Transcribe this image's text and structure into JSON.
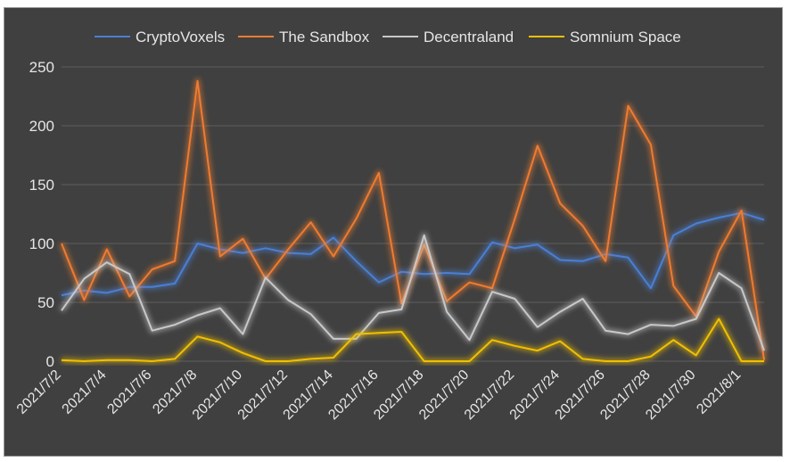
{
  "chart_data": {
    "type": "line",
    "title": "",
    "xlabel": "",
    "ylabel": "",
    "ylim": [
      0,
      250
    ],
    "yticks": [
      0,
      50,
      100,
      150,
      200,
      250
    ],
    "grid": true,
    "legend_position": "top",
    "background": "#404040",
    "categories": [
      "2021/7/2",
      "2021/7/3",
      "2021/7/4",
      "2021/7/5",
      "2021/7/6",
      "2021/7/7",
      "2021/7/8",
      "2021/7/9",
      "2021/7/10",
      "2021/7/11",
      "2021/7/12",
      "2021/7/13",
      "2021/7/14",
      "2021/7/15",
      "2021/7/16",
      "2021/7/17",
      "2021/7/18",
      "2021/7/19",
      "2021/7/20",
      "2021/7/21",
      "2021/7/22",
      "2021/7/23",
      "2021/7/24",
      "2021/7/25",
      "2021/7/26",
      "2021/7/27",
      "2021/7/28",
      "2021/7/29",
      "2021/7/30",
      "2021/7/31",
      "2021/8/1",
      "2021/8/2"
    ],
    "tick_labels": [
      "2021/7/2",
      "2021/7/4",
      "2021/7/6",
      "2021/7/8",
      "2021/7/10",
      "2021/7/12",
      "2021/7/14",
      "2021/7/16",
      "2021/7/18",
      "2021/7/20",
      "2021/7/22",
      "2021/7/24",
      "2021/7/26",
      "2021/7/28",
      "2021/7/30",
      "2021/8/1"
    ],
    "series": [
      {
        "name": "CryptoVoxels",
        "color": "#4a7fd4",
        "values": [
          56,
          60,
          58,
          63,
          63,
          66,
          100,
          95,
          92,
          96,
          92,
          91,
          105,
          85,
          67,
          76,
          74,
          75,
          74,
          101,
          96,
          99,
          86,
          85,
          91,
          88,
          62,
          107,
          117,
          122,
          126,
          120
        ]
      },
      {
        "name": "The Sandbox",
        "color": "#ee7b30",
        "values": [
          100,
          52,
          95,
          55,
          78,
          85,
          238,
          89,
          104,
          70,
          95,
          118,
          89,
          121,
          160,
          49,
          99,
          51,
          67,
          62,
          121,
          183,
          134,
          115,
          85,
          217,
          184,
          64,
          38,
          93,
          128,
          1
        ]
      },
      {
        "name": "Decentraland",
        "color": "#c8c8c8",
        "values": [
          43,
          70,
          84,
          74,
          26,
          31,
          39,
          45,
          23,
          71,
          52,
          40,
          19,
          19,
          41,
          44,
          107,
          42,
          18,
          59,
          53,
          29,
          42,
          53,
          26,
          23,
          31,
          30,
          36,
          75,
          62,
          9
        ]
      },
      {
        "name": "Somnium Space",
        "color": "#f0c000",
        "values": [
          1,
          0,
          1,
          1,
          0,
          2,
          21,
          16,
          7,
          0,
          0,
          2,
          3,
          23,
          24,
          25,
          0,
          0,
          0,
          18,
          13,
          9,
          17,
          2,
          0,
          0,
          4,
          18,
          5,
          36,
          0,
          0
        ]
      }
    ]
  }
}
